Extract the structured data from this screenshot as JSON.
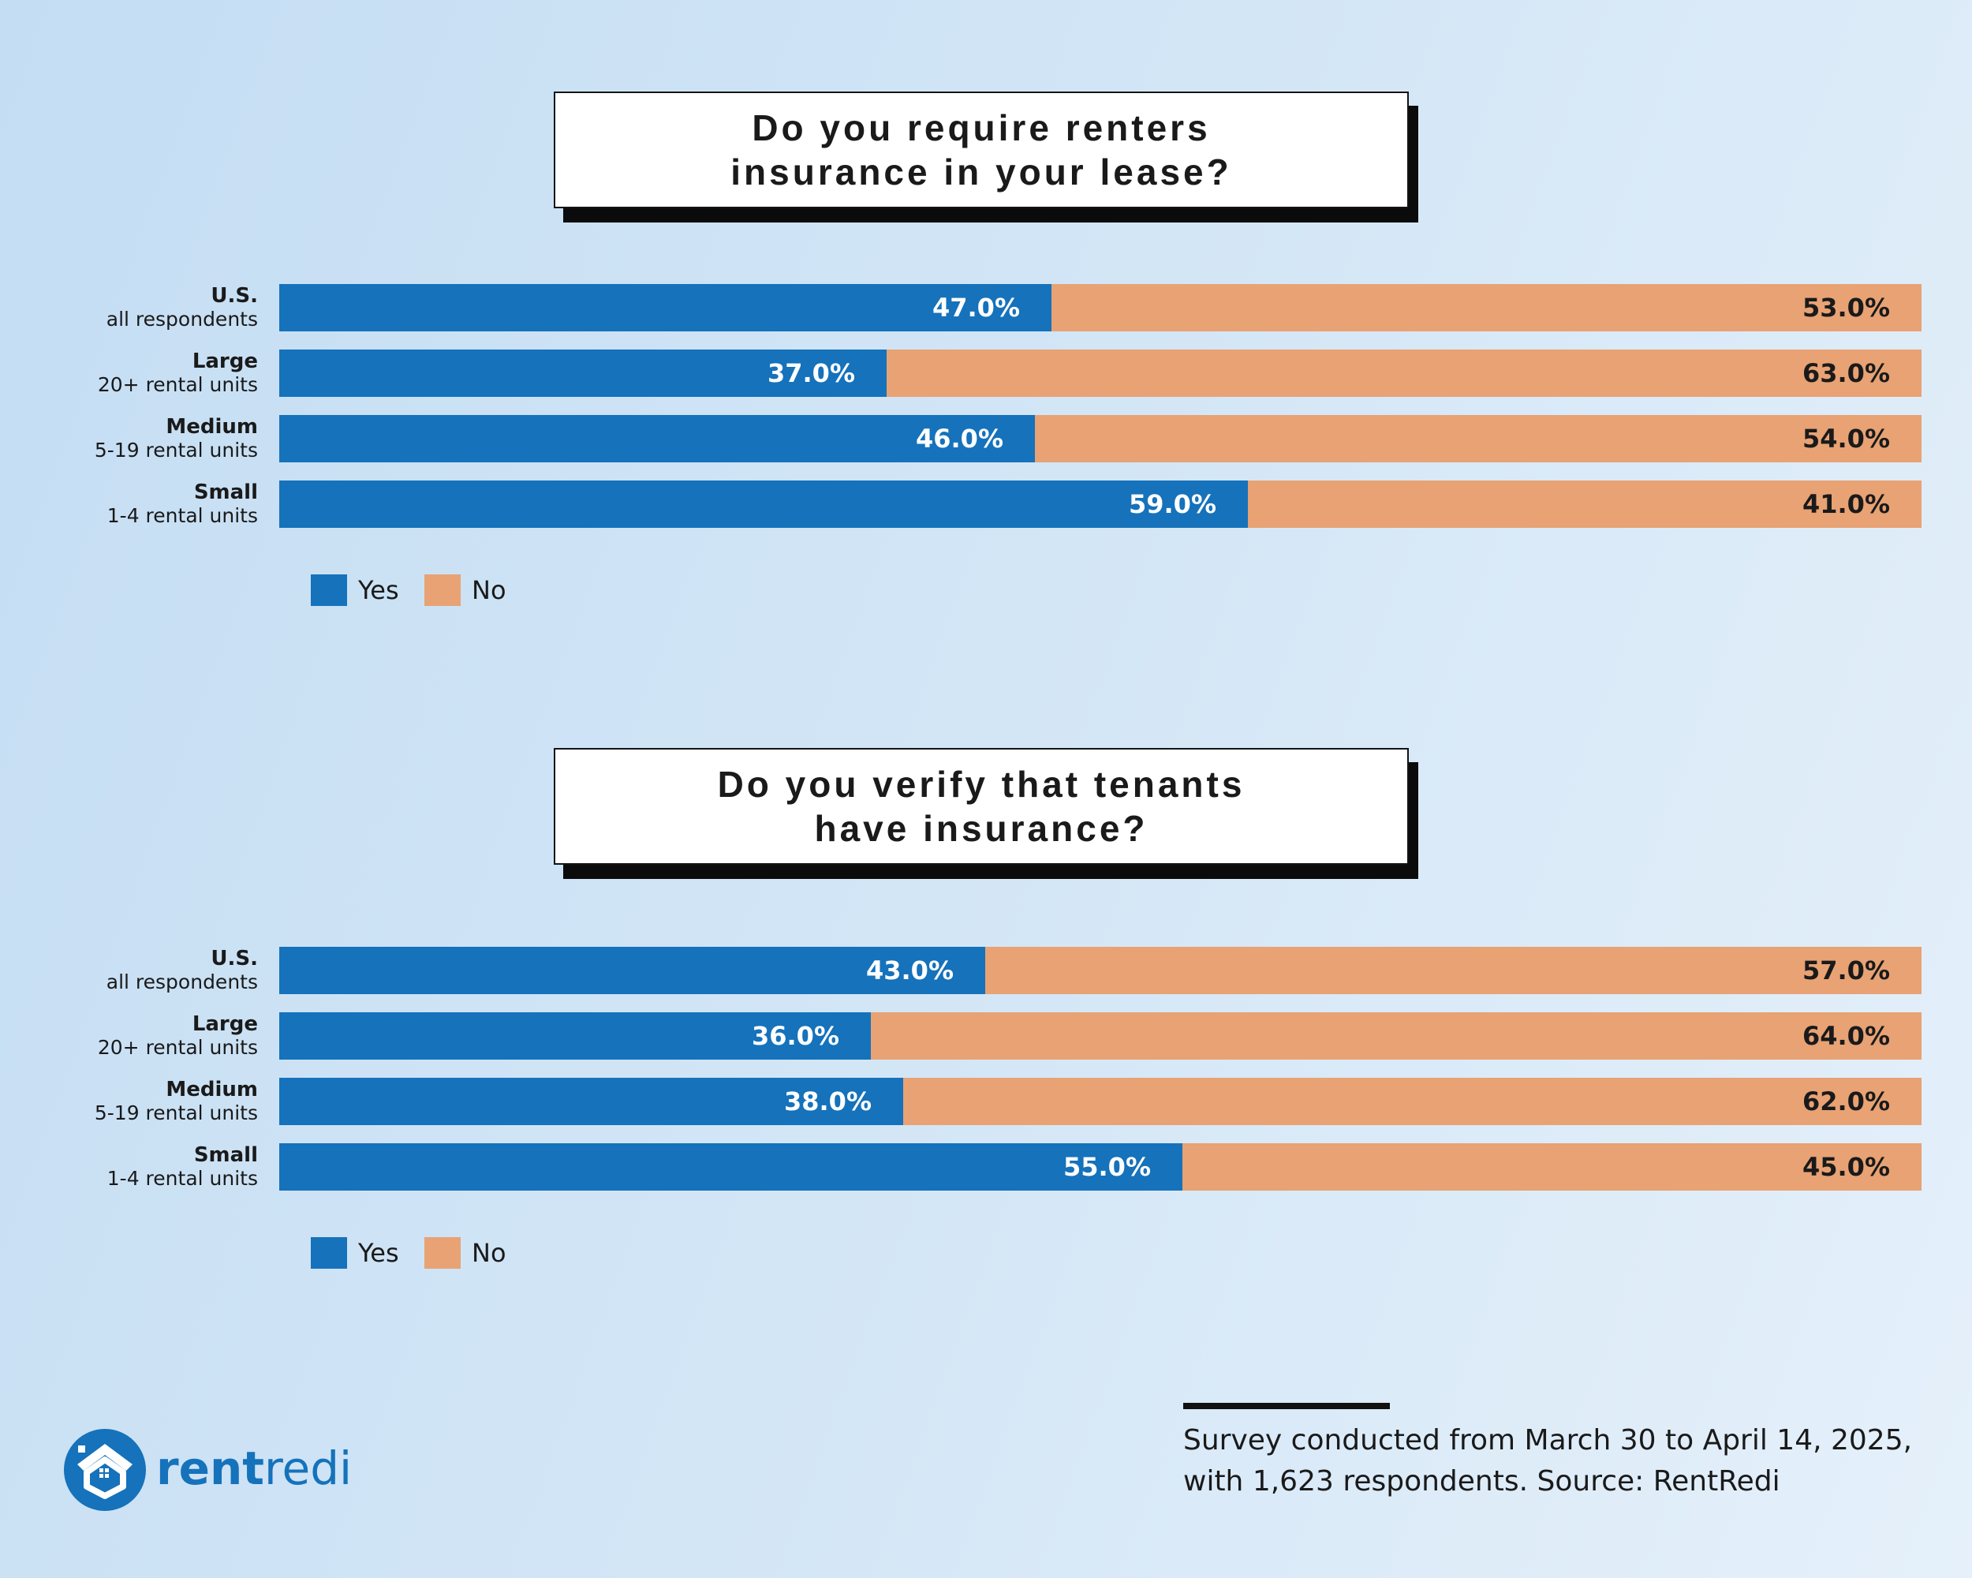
{
  "colors": {
    "yes": "#1572bb",
    "no": "#e8a274",
    "brand": "#1572bb"
  },
  "chart_data": [
    {
      "type": "bar",
      "orientation": "horizontal",
      "stacked": true,
      "title_lines": [
        "Do you require renters",
        "insurance in your lease?"
      ],
      "categories": [
        {
          "name": "U.S.",
          "sub": "all respondents"
        },
        {
          "name": "Large",
          "sub": "20+ rental units"
        },
        {
          "name": "Medium",
          "sub": "5-19 rental units"
        },
        {
          "name": "Small",
          "sub": "1-4 rental units"
        }
      ],
      "series": [
        {
          "name": "Yes",
          "values": [
            47.0,
            37.0,
            46.0,
            59.0
          ],
          "labels": [
            "47.0%",
            "37.0%",
            "46.0%",
            "59.0%"
          ]
        },
        {
          "name": "No",
          "values": [
            53.0,
            63.0,
            54.0,
            41.0
          ],
          "labels": [
            "53.0%",
            "63.0%",
            "54.0%",
            "41.0%"
          ]
        }
      ],
      "xlim": [
        0,
        100
      ],
      "legend": [
        "Yes",
        "No"
      ],
      "legend_position": "bottom-left"
    },
    {
      "type": "bar",
      "orientation": "horizontal",
      "stacked": true,
      "title_lines": [
        "Do you verify that tenants",
        "have insurance?"
      ],
      "categories": [
        {
          "name": "U.S.",
          "sub": "all respondents"
        },
        {
          "name": "Large",
          "sub": "20+ rental units"
        },
        {
          "name": "Medium",
          "sub": "5-19 rental units"
        },
        {
          "name": "Small",
          "sub": "1-4 rental units"
        }
      ],
      "series": [
        {
          "name": "Yes",
          "values": [
            43.0,
            36.0,
            38.0,
            55.0
          ],
          "labels": [
            "43.0%",
            "36.0%",
            "38.0%",
            "55.0%"
          ]
        },
        {
          "name": "No",
          "values": [
            57.0,
            64.0,
            62.0,
            45.0
          ],
          "labels": [
            "57.0%",
            "64.0%",
            "62.0%",
            "45.0%"
          ]
        }
      ],
      "xlim": [
        0,
        100
      ],
      "legend": [
        "Yes",
        "No"
      ],
      "legend_position": "bottom-left"
    }
  ],
  "footer": {
    "note_line1": "Survey conducted from March 30 to April 14, 2025,",
    "note_line2": "with 1,623 respondents. Source: RentRedi"
  },
  "logo": {
    "word_bold": "rent",
    "word_light": "redi",
    "icon": "house-badge-icon"
  }
}
